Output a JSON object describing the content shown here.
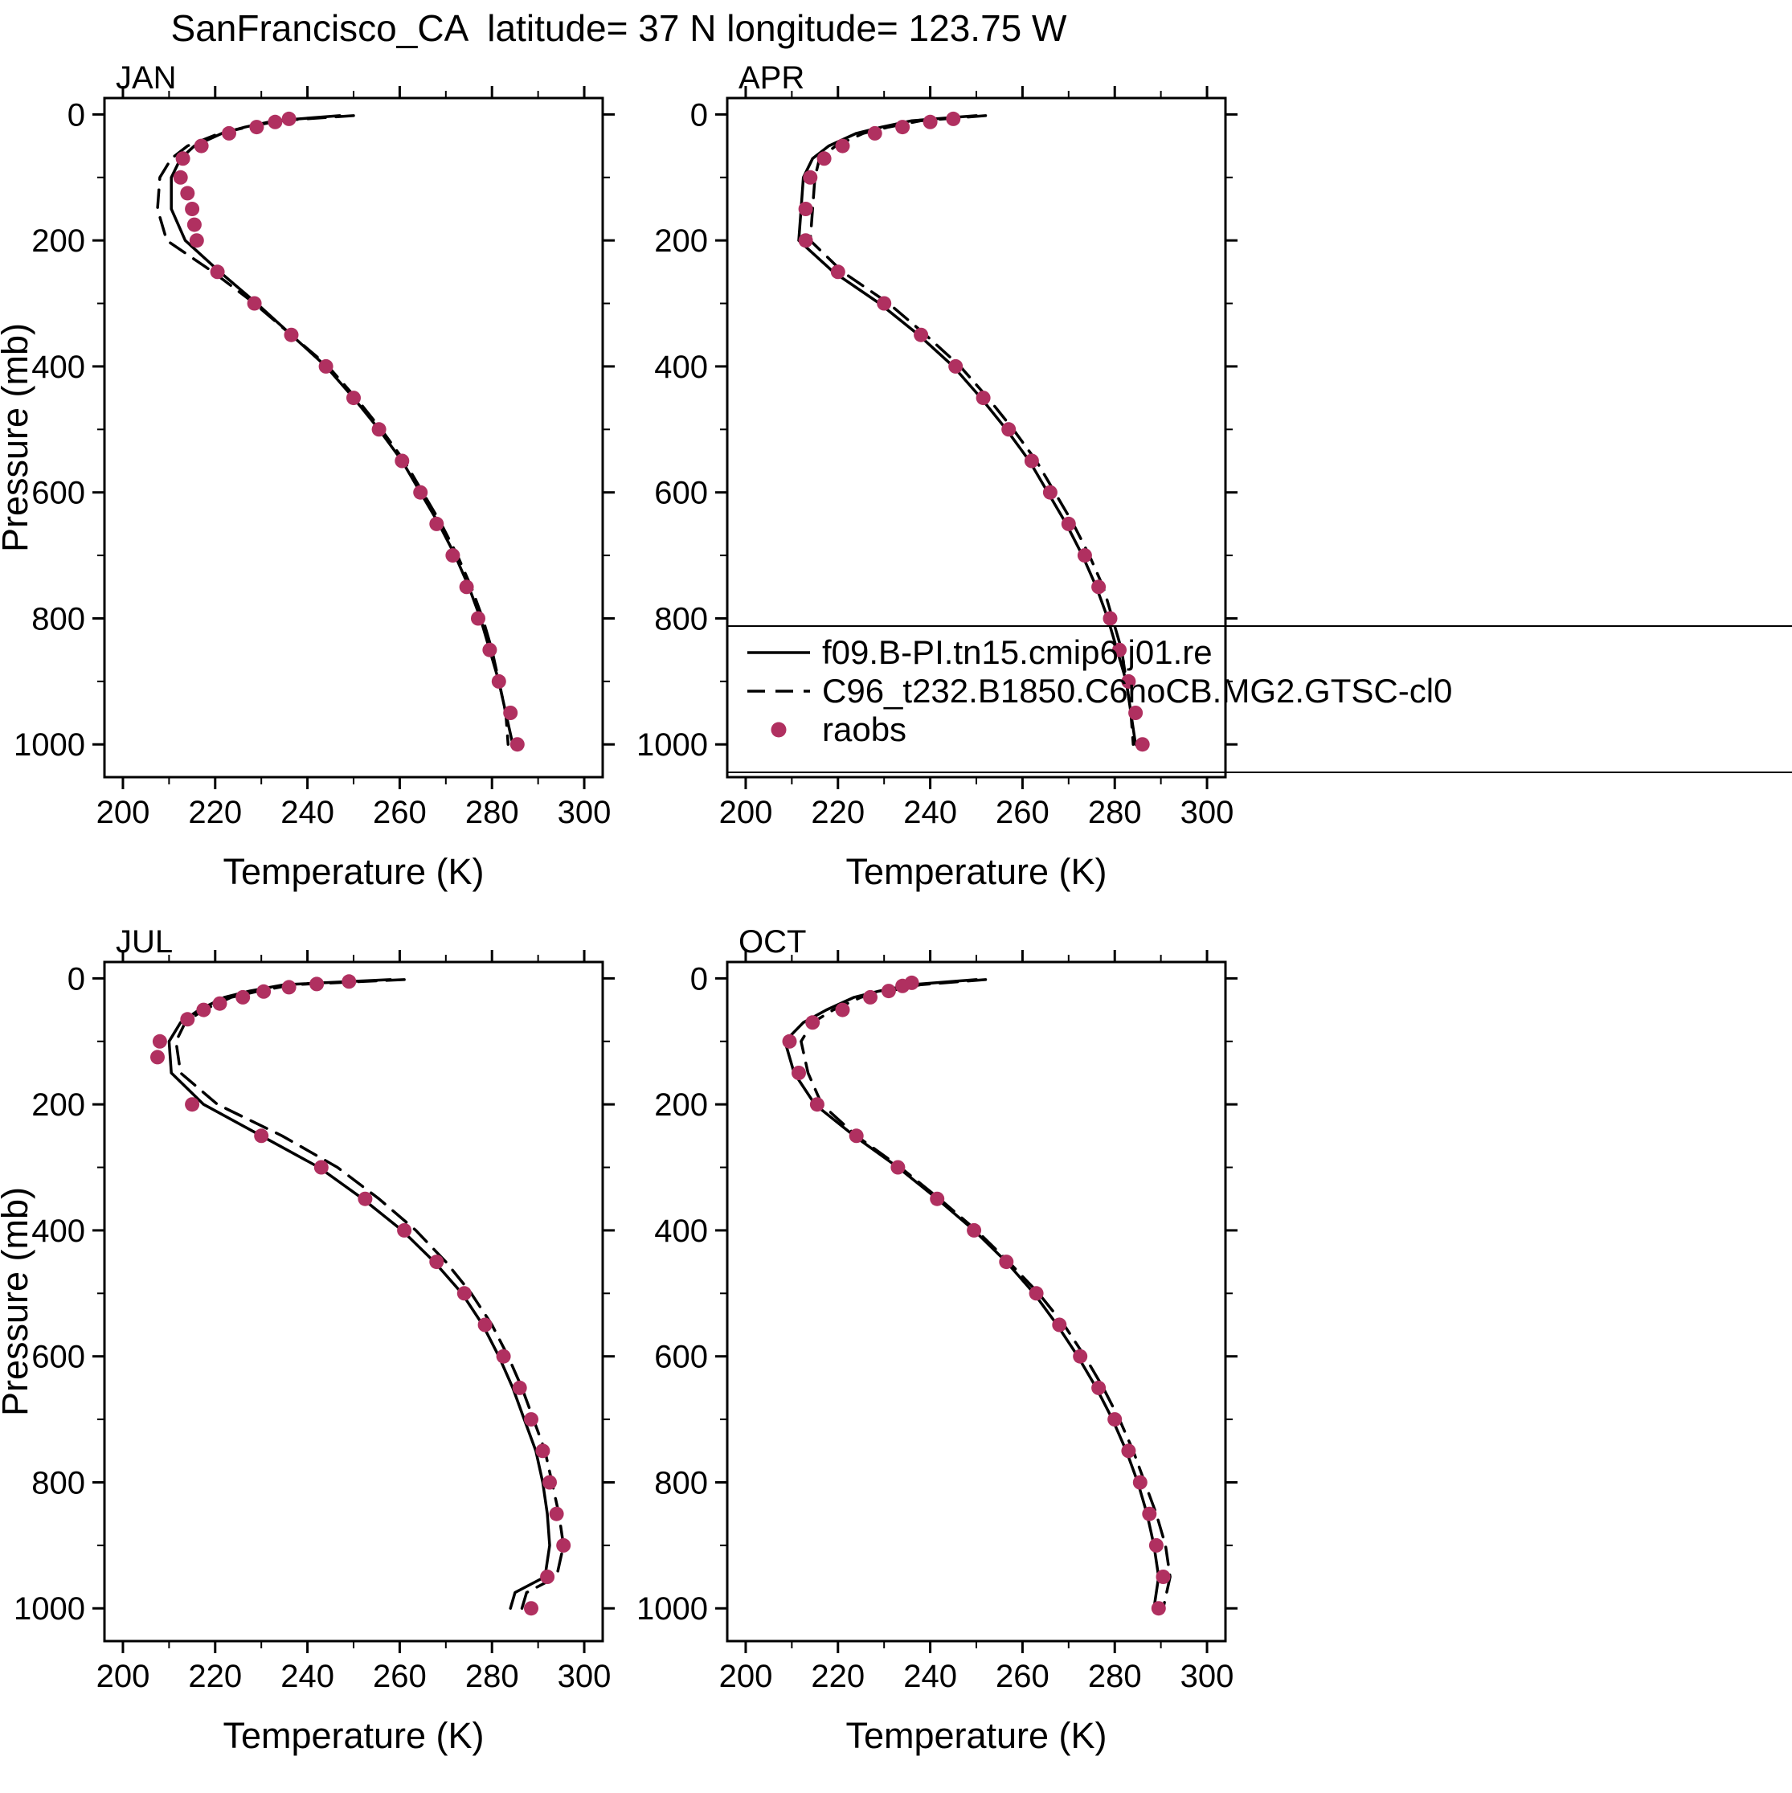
{
  "title": "SanFrancisco_CA  latitude= 37 N longitude= 123.75 W",
  "colors": {
    "model_lines": "#000000",
    "raobs_dots": "#b03060",
    "frame": "#000000"
  },
  "legend": {
    "entries": [
      {
        "style": "solid",
        "label": "f09.B-PI.tn15.cmip6.j01.re"
      },
      {
        "style": "dashed",
        "label": "C96_t232.B1850.C6noCB.MG2.GTSC-cl0"
      },
      {
        "style": "dots",
        "label": "raobs"
      }
    ]
  },
  "chart_data": [
    {
      "type": "line",
      "panel_label": "JAN",
      "xlabel": "Temperature (K)",
      "ylabel": "Pressure (mb)",
      "xlim": [
        200,
        300
      ],
      "ylim": [
        1000,
        0
      ],
      "y_axis_inverted": true,
      "grid": false,
      "x_major_ticks": [
        200,
        220,
        240,
        260,
        280,
        300
      ],
      "x_minor_ticks": [
        210,
        230,
        250,
        270,
        290
      ],
      "y_major_ticks": [
        0,
        200,
        400,
        600,
        800,
        1000
      ],
      "y_minor_ticks": [
        100,
        300,
        500,
        700,
        900
      ],
      "show_legend": false,
      "series": [
        {
          "name": "f09.B-PI.tn15.cmip6.j01.re",
          "style": "solid",
          "pressure_mb": [
            2,
            10,
            20,
            30,
            50,
            70,
            100,
            150,
            200,
            250,
            300,
            350,
            400,
            450,
            500,
            550,
            600,
            650,
            700,
            750,
            800,
            850,
            900,
            950,
            1000
          ],
          "temperature_K": [
            247,
            233,
            226.5,
            221.5,
            215.5,
            212.5,
            210.5,
            210.5,
            213.5,
            221,
            229,
            236.5,
            244,
            250,
            255.5,
            260.5,
            264.5,
            268.5,
            272,
            275,
            277.5,
            279.5,
            281.5,
            283,
            284.5
          ]
        },
        {
          "name": "C96_t232.B1850.C6noCB.MG2.GTSC-cl0",
          "style": "dashed",
          "pressure_mb": [
            2,
            10,
            20,
            30,
            50,
            70,
            100,
            150,
            200,
            250,
            300,
            350,
            400,
            450,
            500,
            550,
            600,
            650,
            700,
            750,
            800,
            850,
            900,
            950,
            1000
          ],
          "temperature_K": [
            250,
            234,
            227,
            221,
            214,
            210.5,
            208,
            207.5,
            209.5,
            219.5,
            228.5,
            236.5,
            244.5,
            250.5,
            256,
            261,
            265,
            269,
            272.5,
            275.5,
            278,
            280,
            281.5,
            283,
            283.5
          ]
        },
        {
          "name": "raobs",
          "style": "dots",
          "pressure_mb": [
            7,
            12,
            20,
            30,
            50,
            70,
            100,
            125,
            150,
            175,
            200,
            250,
            300,
            350,
            400,
            450,
            500,
            550,
            600,
            650,
            700,
            750,
            800,
            850,
            900,
            950,
            1000
          ],
          "temperature_K": [
            236,
            233,
            229,
            223,
            217,
            213,
            212.5,
            214,
            215,
            215.5,
            216,
            220.5,
            228.5,
            236.5,
            244,
            250,
            255.5,
            260.5,
            264.5,
            268,
            271.5,
            274.5,
            277,
            279.5,
            281.5,
            284,
            285.5
          ]
        }
      ]
    },
    {
      "type": "line",
      "panel_label": "APR",
      "xlabel": "Temperature (K)",
      "ylabel": "",
      "xlim": [
        200,
        300
      ],
      "ylim": [
        1000,
        0
      ],
      "y_axis_inverted": true,
      "grid": false,
      "x_major_ticks": [
        200,
        220,
        240,
        260,
        280,
        300
      ],
      "x_minor_ticks": [
        210,
        230,
        250,
        270,
        290
      ],
      "y_major_ticks": [
        0,
        200,
        400,
        600,
        800,
        1000
      ],
      "y_minor_ticks": [
        100,
        300,
        500,
        700,
        900
      ],
      "show_legend": true,
      "series": [
        {
          "name": "f09.B-PI.tn15.cmip6.j01.re",
          "style": "solid",
          "pressure_mb": [
            2,
            10,
            20,
            30,
            50,
            70,
            100,
            150,
            200,
            250,
            300,
            350,
            400,
            450,
            500,
            550,
            600,
            650,
            700,
            750,
            800,
            850,
            900,
            950,
            1000
          ],
          "temperature_K": [
            250,
            236,
            229.5,
            224,
            218,
            214.5,
            212.5,
            212,
            211.5,
            219,
            229,
            237.5,
            245,
            251,
            256.5,
            261.5,
            265.5,
            269.5,
            273,
            276,
            278.5,
            280.5,
            282.5,
            283.5,
            284.5
          ]
        },
        {
          "name": "C96_t232.B1850.C6noCB.MG2.GTSC-cl0",
          "style": "dashed",
          "pressure_mb": [
            2,
            10,
            20,
            30,
            50,
            70,
            100,
            150,
            200,
            250,
            300,
            350,
            400,
            450,
            500,
            550,
            600,
            650,
            700,
            750,
            800,
            850,
            900,
            950,
            1000
          ],
          "temperature_K": [
            252,
            238,
            231,
            225.5,
            219.5,
            216,
            215,
            214.5,
            214,
            221,
            231,
            239,
            246.5,
            252.5,
            258,
            263,
            267,
            271,
            274.5,
            277.5,
            279.5,
            281.5,
            282.5,
            283.5,
            284
          ]
        },
        {
          "name": "raobs",
          "style": "dots",
          "pressure_mb": [
            7,
            12,
            20,
            30,
            50,
            70,
            100,
            150,
            200,
            250,
            300,
            350,
            400,
            450,
            500,
            550,
            600,
            650,
            700,
            750,
            800,
            850,
            900,
            950,
            1000
          ],
          "temperature_K": [
            245,
            240,
            234,
            228,
            221,
            217,
            214,
            213,
            213,
            220,
            230,
            238,
            245.5,
            251.5,
            257,
            262,
            266,
            270,
            273.5,
            276.5,
            279,
            281,
            283,
            284.5,
            286
          ]
        }
      ]
    },
    {
      "type": "line",
      "panel_label": "JUL",
      "xlabel": "Temperature (K)",
      "ylabel": "Pressure (mb)",
      "xlim": [
        200,
        300
      ],
      "ylim": [
        1000,
        0
      ],
      "y_axis_inverted": true,
      "grid": false,
      "x_major_ticks": [
        200,
        220,
        240,
        260,
        280,
        300
      ],
      "x_minor_ticks": [
        210,
        230,
        250,
        270,
        290
      ],
      "y_major_ticks": [
        0,
        200,
        400,
        600,
        800,
        1000
      ],
      "y_minor_ticks": [
        100,
        300,
        500,
        700,
        900
      ],
      "show_legend": false,
      "series": [
        {
          "name": "f09.B-PI.tn15.cmip6.j01.re",
          "style": "solid",
          "pressure_mb": [
            2,
            10,
            20,
            30,
            50,
            70,
            100,
            150,
            200,
            250,
            300,
            350,
            400,
            450,
            500,
            550,
            600,
            650,
            700,
            750,
            800,
            850,
            900,
            950,
            975,
            1000
          ],
          "temperature_K": [
            258,
            235,
            227.5,
            222,
            216.5,
            212.5,
            210,
            210.5,
            217.5,
            230,
            242.5,
            252,
            260.5,
            267.5,
            273.5,
            278,
            281.5,
            284.5,
            287,
            289.5,
            291,
            292,
            292.5,
            291.5,
            285,
            284
          ]
        },
        {
          "name": "C96_t232.B1850.C6noCB.MG2.GTSC-cl0",
          "style": "dashed",
          "pressure_mb": [
            2,
            10,
            20,
            30,
            50,
            70,
            100,
            150,
            200,
            250,
            300,
            350,
            400,
            450,
            500,
            550,
            600,
            650,
            700,
            750,
            800,
            850,
            900,
            950,
            975,
            1000
          ],
          "temperature_K": [
            261,
            237,
            229.5,
            223.5,
            217.5,
            213.5,
            211.5,
            212.5,
            220.5,
            234.5,
            246.5,
            255.5,
            263.5,
            270,
            275.5,
            280,
            283.5,
            286.5,
            289,
            291.5,
            293,
            294.5,
            295.5,
            294,
            287.5,
            286.5
          ]
        },
        {
          "name": "raobs",
          "style": "dots",
          "pressure_mb": [
            5,
            9,
            14,
            21,
            30,
            40,
            50,
            65,
            100,
            125,
            200,
            250,
            300,
            350,
            400,
            450,
            500,
            550,
            600,
            650,
            700,
            750,
            800,
            850,
            900,
            950,
            1000
          ],
          "temperature_K": [
            249,
            242,
            236,
            230.5,
            226,
            221,
            217.5,
            214,
            208,
            207.5,
            215,
            230,
            243,
            252.5,
            261,
            268,
            274,
            278.5,
            282.5,
            286,
            288.5,
            291,
            292.5,
            294,
            295.5,
            292,
            288.5
          ]
        }
      ]
    },
    {
      "type": "line",
      "panel_label": "OCT",
      "xlabel": "Temperature (K)",
      "ylabel": "",
      "xlim": [
        200,
        300
      ],
      "ylim": [
        1000,
        0
      ],
      "y_axis_inverted": true,
      "grid": false,
      "x_major_ticks": [
        200,
        220,
        240,
        260,
        280,
        300
      ],
      "x_minor_ticks": [
        210,
        230,
        250,
        270,
        290
      ],
      "y_major_ticks": [
        0,
        200,
        400,
        600,
        800,
        1000
      ],
      "y_minor_ticks": [
        100,
        300,
        500,
        700,
        900
      ],
      "show_legend": false,
      "series": [
        {
          "name": "f09.B-PI.tn15.cmip6.j01.re",
          "style": "solid",
          "pressure_mb": [
            2,
            10,
            20,
            30,
            50,
            70,
            100,
            150,
            200,
            250,
            300,
            350,
            400,
            450,
            500,
            550,
            600,
            650,
            700,
            750,
            800,
            850,
            900,
            950,
            1000
          ],
          "temperature_K": [
            250,
            236,
            229,
            223.5,
            217.5,
            212.5,
            208.5,
            210.5,
            215,
            223.5,
            233,
            241.5,
            249.5,
            256.5,
            262.5,
            267.5,
            272,
            276,
            279.5,
            282.5,
            285,
            287,
            288.5,
            289.5,
            288.5
          ]
        },
        {
          "name": "C96_t232.B1850.C6noCB.MG2.GTSC-cl0",
          "style": "dashed",
          "pressure_mb": [
            2,
            10,
            20,
            30,
            50,
            70,
            100,
            150,
            200,
            250,
            300,
            350,
            400,
            450,
            500,
            550,
            600,
            650,
            700,
            750,
            800,
            850,
            900,
            950,
            1000
          ],
          "temperature_K": [
            252,
            238,
            231,
            225,
            219,
            214.5,
            212,
            213.5,
            216.5,
            224,
            233.5,
            242,
            250,
            257,
            263.5,
            269,
            273.5,
            277.5,
            281,
            284,
            286.5,
            289,
            291,
            292,
            290.5
          ]
        },
        {
          "name": "raobs",
          "style": "dots",
          "pressure_mb": [
            7,
            12,
            20,
            30,
            50,
            70,
            100,
            150,
            200,
            250,
            300,
            350,
            400,
            450,
            500,
            550,
            600,
            650,
            700,
            750,
            800,
            850,
            900,
            950,
            1000
          ],
          "temperature_K": [
            236,
            234,
            231,
            227,
            221,
            214.5,
            209.5,
            211.5,
            215.5,
            224,
            233,
            241.5,
            249.5,
            256.5,
            263,
            268,
            272.5,
            276.5,
            280,
            283,
            285.5,
            287.5,
            289,
            290.5,
            289.5
          ]
        }
      ]
    }
  ]
}
